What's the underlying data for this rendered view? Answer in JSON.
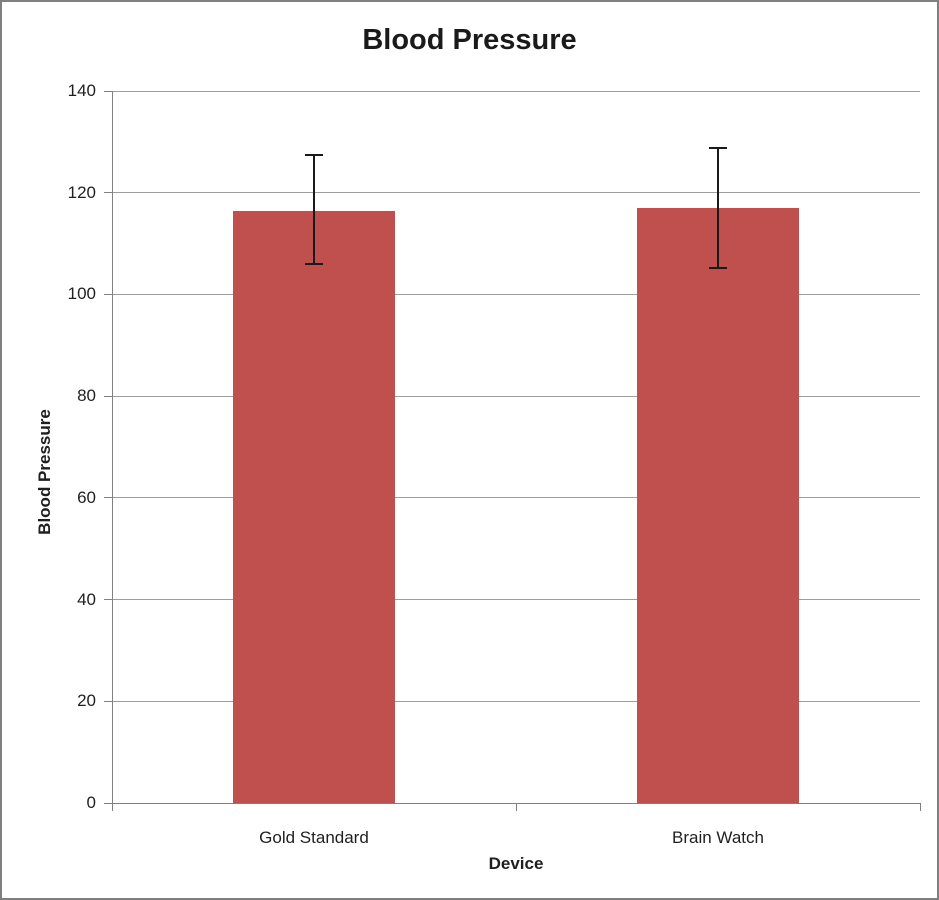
{
  "chart_data": {
    "type": "bar",
    "title": "Blood Pressure",
    "xlabel": "Device",
    "ylabel": "Blood Pressure",
    "categories": [
      "Gold Standard",
      "Brain Watch"
    ],
    "values": [
      116.5,
      117
    ],
    "error_bars": {
      "upper": [
        127.5,
        128.8
      ],
      "lower": [
        106.0,
        105.2
      ]
    },
    "ylim": [
      0,
      140
    ],
    "ytick_step": 20,
    "yticks": [
      0,
      20,
      40,
      60,
      80,
      100,
      120,
      140
    ],
    "grid": true,
    "legend": "none",
    "bar_color": "#C0504D",
    "gridline_color": "#9D9D9D",
    "axis_color": "#808080",
    "error_bar_color": "#1A1A1A",
    "title_color": "#1A1A1A",
    "text_color": "#1F1F1F",
    "frame_border_color": "#7F7F7F"
  }
}
